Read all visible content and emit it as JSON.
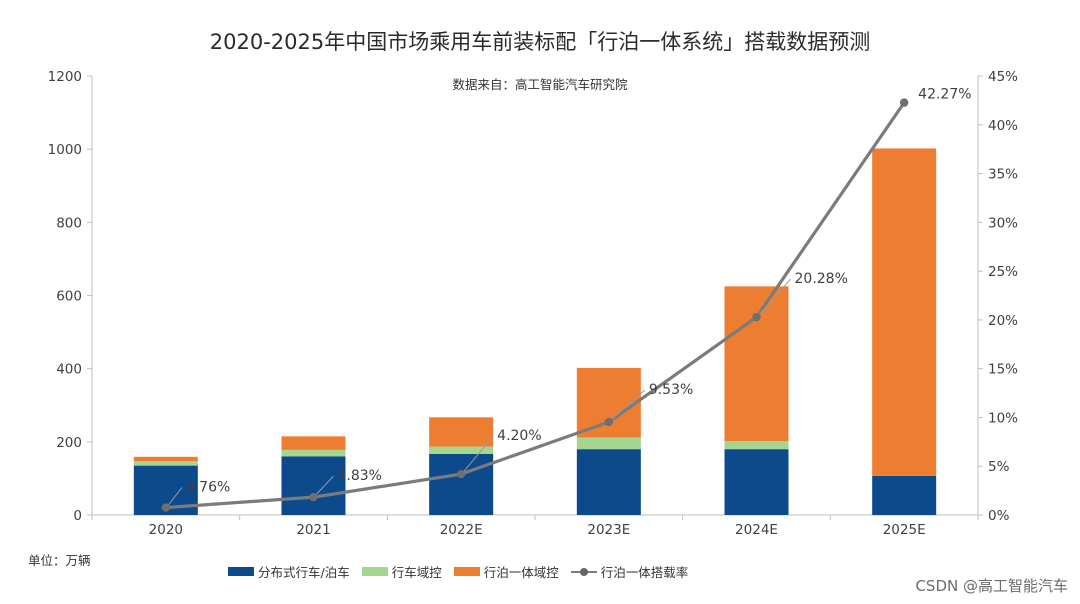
{
  "title": "2020-2025年中国市场乘用车前装标配「行泊一体系统」搭载数据预测",
  "source": "数据来自：高工智能汽车研究院",
  "unit_label": "单位：万辆",
  "watermark": "CSDN @高工智能汽车",
  "colors": {
    "distributed": "#0d4a8c",
    "driving_domain": "#a5d58e",
    "integrated_domain": "#ed7d31",
    "rate_line": "#7b7b7b"
  },
  "chart_data": {
    "type": "bar",
    "stacked": true,
    "categories": [
      "2020",
      "2021",
      "2022E",
      "2023E",
      "2024E",
      "2025E"
    ],
    "series": [
      {
        "name": "分布式行车/泊车",
        "values": [
          135,
          160,
          167,
          180,
          180,
          107
        ]
      },
      {
        "name": "行车域控",
        "values": [
          12,
          18,
          20,
          32,
          22,
          0
        ]
      },
      {
        "name": "行泊一体域控",
        "values": [
          12,
          37,
          80,
          190,
          423,
          895
        ]
      }
    ],
    "line_series": {
      "name": "行泊一体搭载率",
      "values": [
        0.76,
        1.83,
        4.2,
        9.53,
        20.28,
        42.27
      ],
      "labels": [
        "0.76%",
        "1.83%",
        "4.20%",
        "9.53%",
        "20.28%",
        "42.27%"
      ],
      "axis": "right"
    },
    "y_left": {
      "ticks": [
        "0",
        "200",
        "400",
        "600",
        "800",
        "1000",
        "1200"
      ],
      "ylim": [
        0,
        1200
      ]
    },
    "y_right": {
      "ticks": [
        "0%",
        "5%",
        "10%",
        "15%",
        "20%",
        "25%",
        "30%",
        "35%",
        "40%",
        "45%"
      ],
      "ylim": [
        0,
        45
      ]
    },
    "grid": false,
    "legend_position": "bottom"
  }
}
